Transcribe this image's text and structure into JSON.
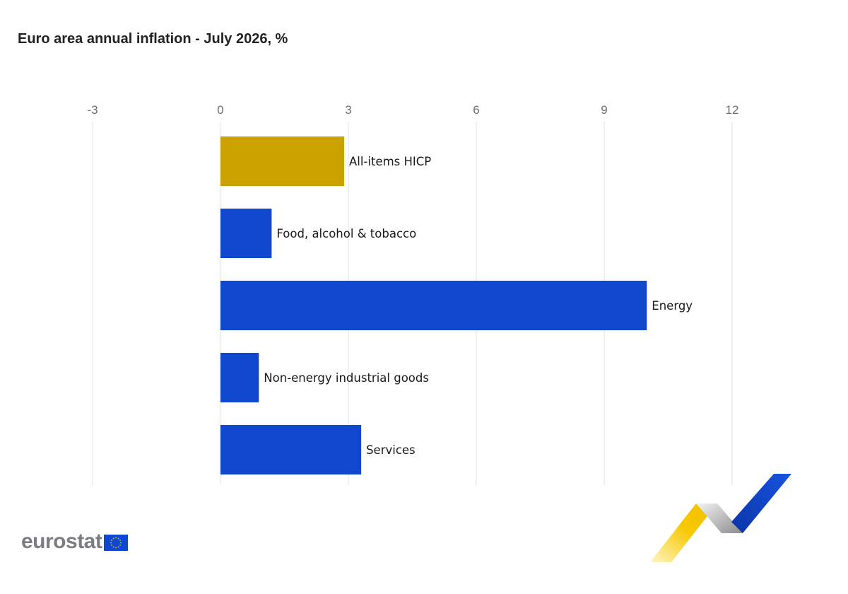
{
  "chart_data": {
    "type": "bar",
    "orientation": "horizontal",
    "title": "Euro area annual inflation - July 2026, %",
    "categories": [
      "All-items HICP",
      "Food, alcohol & tobacco",
      "Energy",
      "Non-energy industrial goods",
      "Services"
    ],
    "values": [
      2.9,
      1.2,
      10.0,
      0.9,
      3.3
    ],
    "colors": [
      "#cba100",
      "#0f47cf",
      "#0f47cf",
      "#0f47cf",
      "#0f47cf"
    ],
    "xlim": [
      -3,
      13.5
    ],
    "xticks": [
      -3,
      0,
      3,
      6,
      9,
      12
    ],
    "tick_labels": [
      "-3",
      "0",
      "3",
      "6",
      "9",
      "12"
    ],
    "grid": "vertical",
    "labels_position": "end-of-bar"
  },
  "branding": {
    "logo_text": "eurostat",
    "colors": {
      "eu_blue": "#0f47cf",
      "eu_star": "#ffd400",
      "ribbon_yellow": "#f6c800",
      "ribbon_grey": "#9a9a9a",
      "ribbon_blue": "#0f47cf"
    }
  }
}
